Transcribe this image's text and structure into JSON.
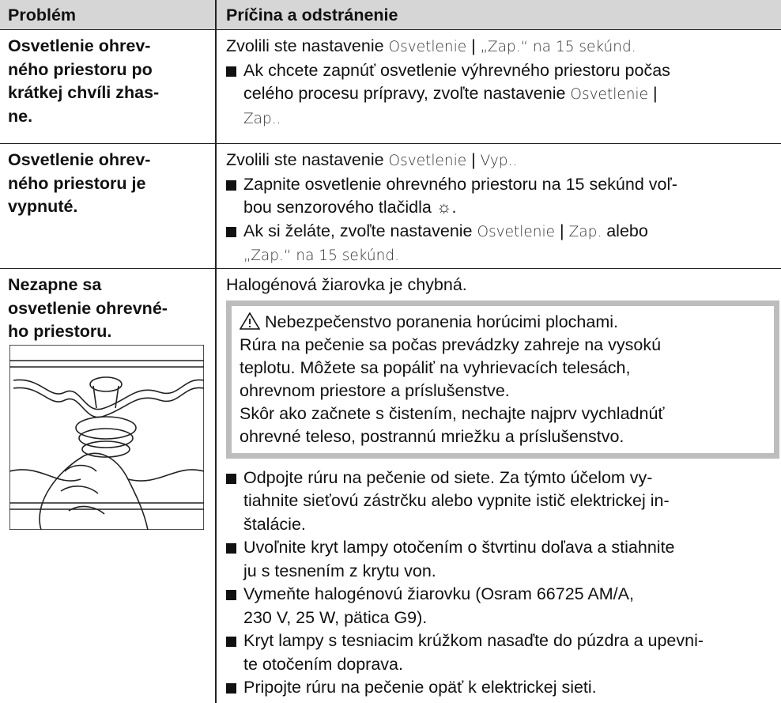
{
  "header": {
    "col1": "Problém",
    "col2": "Príčina a odstránenie"
  },
  "rows": [
    {
      "problem": [
        "Osvetlenie ohrev-",
        "ného priestoru po",
        "krátkej chvíli zhas-",
        "ne."
      ],
      "cause": [
        [
          "Zvolili ste nastavenie ",
          {
            "ui": "Osvetlenie"
          },
          " | ",
          {
            "ui": "„Zap.“ na 15 sekúnd."
          }
        ]
      ],
      "bullets": [
        [
          [
            "Ak chcete zapnúť osvetlenie výhrevného priestoru počas"
          ],
          [
            "celého procesu prípravy, zvoľte nastavenie ",
            {
              "ui": "Osvetlenie"
            },
            " |"
          ],
          [
            {
              "ui": "Zap.."
            }
          ]
        ]
      ]
    },
    {
      "problem": [
        "Osvetlenie ohrev-",
        "ného priestoru je",
        "vypnuté."
      ],
      "cause": [
        [
          "Zvolili ste nastavenie ",
          {
            "ui": "Osvetlenie"
          },
          " | ",
          {
            "ui": "Vyp.."
          }
        ]
      ],
      "bullets": [
        [
          [
            "Zapnite osvetlenie ohrevného priestoru na 15 sekúnd voľ-"
          ],
          [
            "bou senzorového tlačidla ☼."
          ]
        ],
        [
          [
            "Ak si želáte, zvoľte nastavenie ",
            {
              "ui": "Osvetlenie"
            },
            " | ",
            {
              "ui": "Zap."
            },
            " alebo"
          ],
          [
            {
              "ui": "„Zap.“ na 15 sekúnd."
            }
          ]
        ]
      ]
    },
    {
      "problem": [
        "Nezapne sa",
        "osvetlenie ohrevné-",
        "ho priestoru."
      ],
      "cause": [
        [
          "Halogénová žiarovka je chybná."
        ]
      ],
      "warning": {
        "title": "Nebezpečenstvo poranenia horúcimi plochami.",
        "lines": [
          "Rúra na pečenie sa počas prevádzky zahreje na vysokú",
          "teplotu. Môžete sa popáliť na vyhrievacích telesách,",
          "ohrevnom priestore a príslušenstve.",
          "Skôr ako začnete s čistením, nechajte najprv vychladnúť",
          "ohrevné teleso, postrannú mriežku a príslušenstvo."
        ]
      },
      "bullets": [
        [
          [
            "Odpojte rúru na pečenie od siete. Za týmto účelom vy-"
          ],
          [
            "tiahnite sieťovú zástrčku alebo vypnite istič elektrickej in-"
          ],
          [
            "štalácie."
          ]
        ],
        [
          [
            "Uvoľnite kryt lampy otočením o štvrtinu doľava a stiahnite"
          ],
          [
            "ju s tesnením z krytu von."
          ]
        ],
        [
          [
            "Vymeňte halogénovú žiarovku (Osram 66725 AM/A,"
          ],
          [
            "230 V, 25 W, pätica G9)."
          ]
        ],
        [
          [
            "Kryt lampy s tesniacim krúžkom nasaďte do púzdra a upevni-"
          ],
          [
            "te otočením doprava."
          ]
        ],
        [
          [
            "Pripojte rúru na pečenie opäť k elektrickej sieti."
          ]
        ]
      ]
    }
  ]
}
